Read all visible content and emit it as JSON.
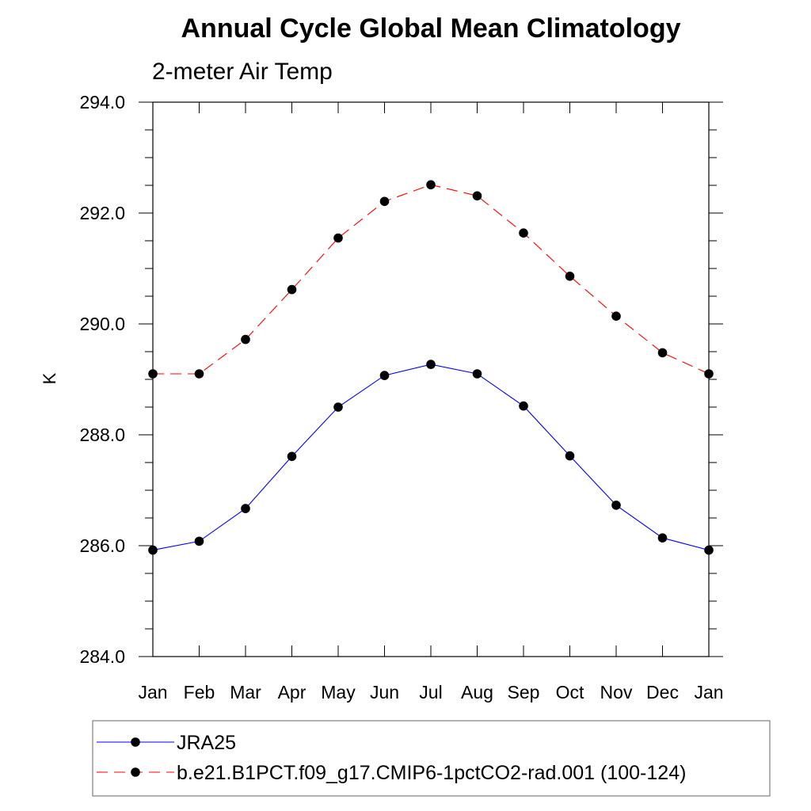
{
  "chart_data": {
    "type": "line",
    "title": "Annual Cycle Global Mean Climatology",
    "subtitle": "2-meter Air Temp",
    "ylabel": "K",
    "xlabel": "",
    "categories": [
      "Jan",
      "Feb",
      "Mar",
      "Apr",
      "May",
      "Jun",
      "Jul",
      "Aug",
      "Sep",
      "Oct",
      "Nov",
      "Dec",
      "Jan"
    ],
    "ylim": [
      284.0,
      294.0
    ],
    "yticks": [
      "284.0",
      "286.0",
      "288.0",
      "290.0",
      "292.0",
      "294.0"
    ],
    "grid": false,
    "legend_position": "bottom",
    "series": [
      {
        "name": "JRA25",
        "color": "#0000ff",
        "line_style": "solid",
        "marker": "filled-circle",
        "values": [
          285.92,
          286.08,
          286.67,
          287.61,
          288.5,
          289.07,
          289.27,
          289.1,
          288.52,
          287.62,
          286.73,
          286.14,
          285.92
        ]
      },
      {
        "name": "b.e21.B1PCT.f09_g17.CMIP6-1pctCO2-rad.001 (100-124)",
        "color": "#ff0000",
        "line_style": "dashed",
        "marker": "filled-circle",
        "values": [
          289.1,
          289.1,
          289.72,
          290.62,
          291.55,
          292.21,
          292.51,
          292.31,
          291.64,
          290.86,
          290.14,
          289.48,
          289.1
        ]
      }
    ]
  }
}
